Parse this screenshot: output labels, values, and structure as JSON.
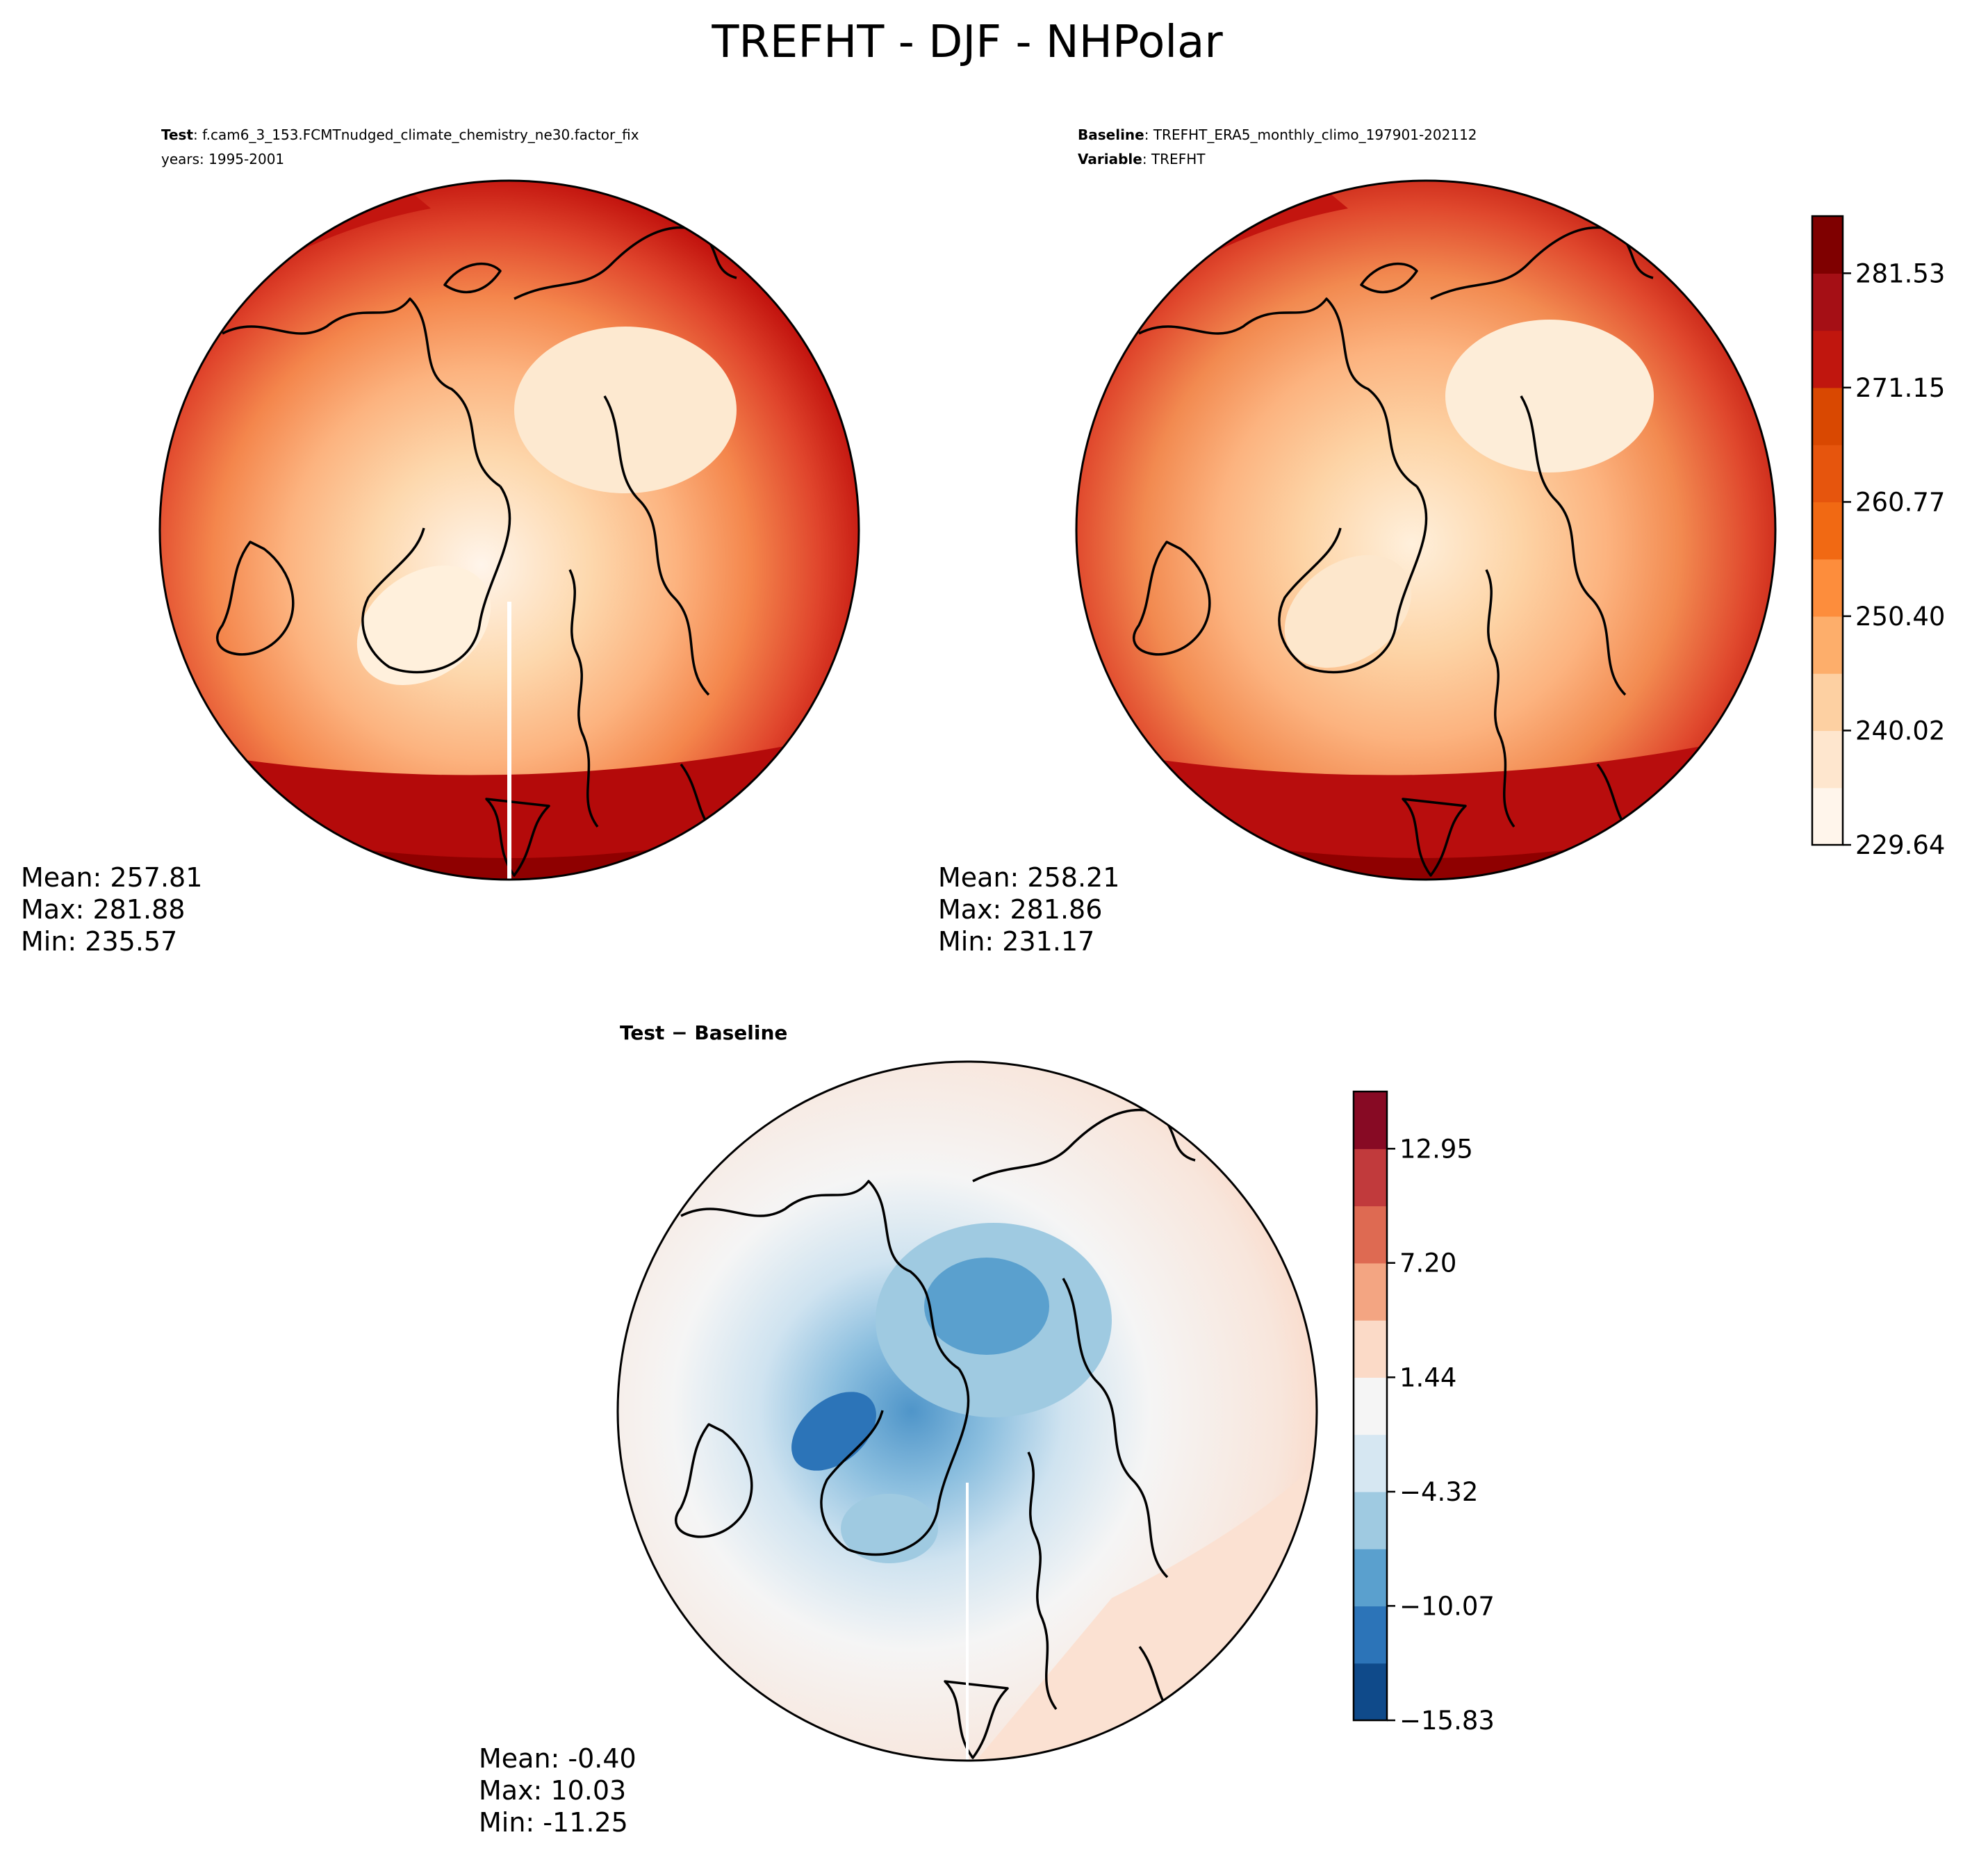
{
  "page": {
    "title": "TREFHT - DJF - NHPolar"
  },
  "panels": {
    "test": {
      "label_bold": "Test",
      "label_value": ": f.cam6_3_153.FCMTnudged_climate_chemistry_ne30.factor_fix",
      "line2": "years: 1995-2001",
      "stats": {
        "mean": "Mean: 257.81",
        "max": "Max: 281.88",
        "min": "Min: 235.57"
      }
    },
    "baseline": {
      "label_bold": "Baseline",
      "label_value": ": TREFHT_ERA5_monthly_climo_197901-202112",
      "line2_bold": "Variable",
      "line2_value": ": TREFHT",
      "stats": {
        "mean": "Mean: 258.21",
        "max": "Max: 281.86",
        "min": "Min: 231.17"
      }
    },
    "diff": {
      "title_a": "Test",
      "title_sep": " − ",
      "title_b": "Baseline",
      "stats": {
        "mean": "Mean: -0.40",
        "max": "Max: 10.03",
        "min": "Min: -11.25"
      }
    }
  },
  "chart_data": [
    {
      "type": "heatmap",
      "title": "Test : f.cam6_3_153.FCMTnudged_climate_chemistry_ne30.factor_fix",
      "projection": "north-polar-stereographic",
      "variable": "TREFHT",
      "season": "DJF",
      "stats": {
        "mean": 257.81,
        "max": 281.88,
        "min": 235.57
      }
    },
    {
      "type": "heatmap",
      "title": "Baseline : TREFHT_ERA5_monthly_climo_197901-202112",
      "projection": "north-polar-stereographic",
      "variable": "TREFHT",
      "season": "DJF",
      "stats": {
        "mean": 258.21,
        "max": 281.86,
        "min": 231.17
      }
    },
    {
      "type": "heatmap",
      "title": "Test − Baseline",
      "projection": "north-polar-stereographic",
      "variable": "TREFHT",
      "season": "DJF",
      "stats": {
        "mean": -0.4,
        "max": 10.03,
        "min": -11.25
      }
    }
  ],
  "colorbars": {
    "main": {
      "range": [
        229.64,
        286.72
      ],
      "tick_values": [
        229.64,
        240.02,
        250.4,
        260.77,
        271.15,
        281.53
      ],
      "tick_labels": [
        "229.64",
        "240.02",
        "250.40",
        "260.77",
        "271.15",
        "281.53"
      ],
      "colors": [
        "#fff5eb",
        "#fee6ce",
        "#fdd0a2",
        "#fdae6b",
        "#fd8d3c",
        "#f16913",
        "#e6550d",
        "#d94801",
        "#c0160e",
        "#a50f15",
        "#7f0000"
      ]
    },
    "diff": {
      "range": [
        -15.83,
        15.83
      ],
      "tick_values": [
        -15.83,
        -10.07,
        -4.32,
        1.44,
        7.2,
        12.95
      ],
      "tick_labels": [
        "−15.83",
        "−10.07",
        "−4.32",
        "1.44",
        "7.20",
        "12.95"
      ],
      "colors": [
        "#0f4a8a",
        "#2c74b8",
        "#5aa0ce",
        "#9fcae1",
        "#d6e7f2",
        "#f5f5f5",
        "#fbdac7",
        "#f3a582",
        "#de6a52",
        "#c13a3c",
        "#870a24"
      ]
    }
  }
}
